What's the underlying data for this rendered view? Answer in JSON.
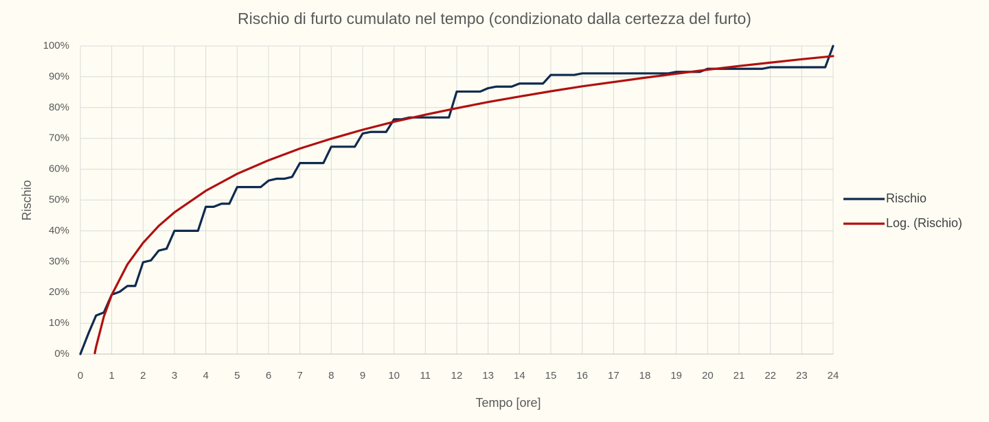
{
  "chart_data": {
    "type": "line",
    "title": "Rischio di furto cumulato nel tempo (condizionato dalla certezza del furto)",
    "x_label": "Tempo [ore]",
    "y_label": "Rischio",
    "x": [
      0,
      0.25,
      0.5,
      0.75,
      1,
      1.25,
      1.5,
      1.75,
      2,
      2.25,
      2.5,
      2.75,
      3,
      3.25,
      3.5,
      3.75,
      4,
      4.25,
      4.5,
      4.75,
      5,
      5.25,
      5.5,
      5.75,
      6,
      6.25,
      6.5,
      6.75,
      7,
      7.25,
      7.5,
      7.75,
      8,
      8.25,
      8.5,
      8.75,
      9,
      9.25,
      9.5,
      9.75,
      10,
      10.25,
      10.5,
      10.75,
      11,
      11.25,
      11.5,
      11.75,
      12,
      12.25,
      12.5,
      12.75,
      13,
      13.25,
      13.5,
      13.75,
      14,
      14.25,
      14.5,
      14.75,
      15,
      15.25,
      15.5,
      15.75,
      16,
      16.25,
      16.5,
      16.75,
      17,
      17.25,
      17.5,
      17.75,
      18,
      18.25,
      18.5,
      18.75,
      19,
      19.25,
      19.5,
      19.75,
      20,
      20.25,
      20.5,
      20.75,
      21,
      21.25,
      21.5,
      21.75,
      22,
      22.25,
      22.5,
      22.75,
      23,
      23.25,
      23.5,
      23.75,
      24
    ],
    "series": [
      {
        "name": "Rischio",
        "color": "#0f2a4f",
        "values": [
          0,
          6.5,
          12.5,
          13.5,
          19.3,
          20.2,
          22.1,
          22.1,
          29.8,
          30.4,
          33.6,
          34.2,
          40,
          40,
          40,
          40,
          47.8,
          47.8,
          48.8,
          48.8,
          54.2,
          54.2,
          54.2,
          54.2,
          56.3,
          56.9,
          56.9,
          57.5,
          62,
          62,
          62,
          62,
          67.3,
          67.3,
          67.3,
          67.3,
          71.6,
          72.1,
          72.1,
          72.1,
          76.2,
          76.2,
          76.8,
          76.8,
          76.8,
          76.8,
          76.8,
          76.8,
          85.2,
          85.2,
          85.2,
          85.2,
          86.3,
          86.8,
          86.8,
          86.8,
          87.8,
          87.8,
          87.8,
          87.8,
          90.6,
          90.6,
          90.6,
          90.6,
          91.1,
          91.1,
          91.1,
          91.1,
          91.1,
          91.1,
          91.1,
          91.1,
          91.1,
          91.1,
          91.1,
          91.1,
          91.6,
          91.6,
          91.6,
          91.6,
          92.6,
          92.6,
          92.6,
          92.6,
          92.6,
          92.6,
          92.6,
          92.6,
          93.1,
          93.1,
          93.1,
          93.1,
          93.1,
          93.1,
          93.1,
          93.1,
          100
        ]
      },
      {
        "name": "Log. (Rischio)",
        "color": "#b01010",
        "x": [
          0.46,
          0.5,
          0.75,
          1,
          1.5,
          2,
          2.5,
          3,
          4,
          5,
          6,
          7,
          8,
          9,
          10,
          11,
          12,
          13,
          14,
          15,
          16,
          17,
          18,
          19,
          20,
          21,
          22,
          23,
          24
        ],
        "values": [
          0.3,
          2.3,
          12.2,
          19.2,
          29.1,
          36.1,
          41.6,
          46.0,
          53.0,
          58.5,
          62.9,
          66.7,
          69.9,
          72.8,
          75.4,
          77.7,
          79.8,
          81.8,
          83.6,
          85.3,
          86.9,
          88.3,
          89.7,
          91.0,
          92.3,
          93.5,
          94.6,
          95.7,
          96.7
        ]
      }
    ],
    "xlim": [
      0,
      24
    ],
    "xticks": [
      0,
      1,
      2,
      3,
      4,
      5,
      6,
      7,
      8,
      9,
      10,
      11,
      12,
      13,
      14,
      15,
      16,
      17,
      18,
      19,
      20,
      21,
      22,
      23,
      24
    ],
    "ylim": [
      0,
      100
    ],
    "yticks": [
      {
        "value": 0,
        "label": "0%"
      },
      {
        "value": 10,
        "label": "10%"
      },
      {
        "value": 20,
        "label": "20%"
      },
      {
        "value": 30,
        "label": "30%"
      },
      {
        "value": 40,
        "label": "40%"
      },
      {
        "value": 50,
        "label": "50%"
      },
      {
        "value": 60,
        "label": "60%"
      },
      {
        "value": 70,
        "label": "70%"
      },
      {
        "value": 80,
        "label": "80%"
      },
      {
        "value": 90,
        "label": "90%"
      },
      {
        "value": 100,
        "label": "100%"
      }
    ],
    "grid": true,
    "legend": "right"
  }
}
